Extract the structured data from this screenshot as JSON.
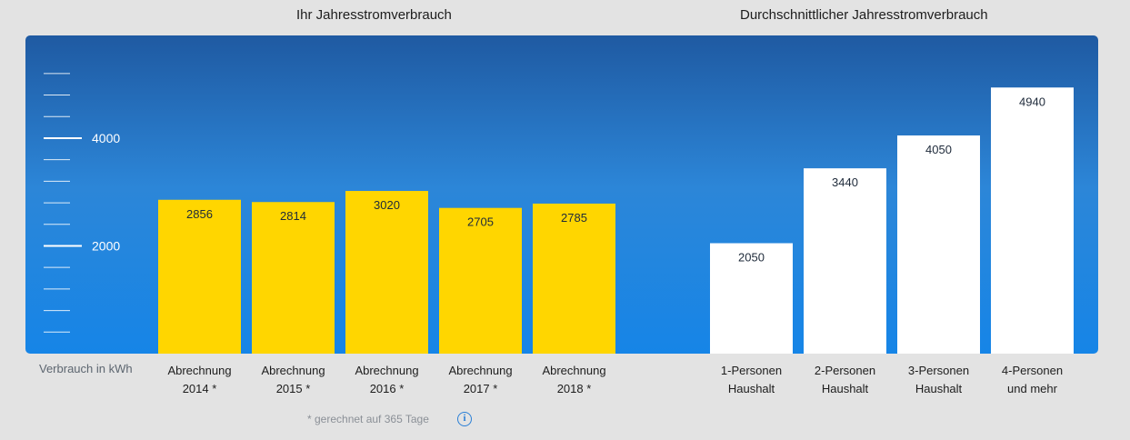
{
  "titles": {
    "own": "Ihr Jahresstromverbrauch",
    "average": "Durchschnittlicher Jahresstromverbrauch"
  },
  "y_axis_label": "Verbrauch in kWh",
  "footnote": "* gerechnet auf 365 Tage",
  "info_icon": "info-icon",
  "colors": {
    "own_bars": "#ffd600",
    "average_bars": "#ffffff",
    "panel_top": "#1f5aa2",
    "panel_bottom": "#1685e7"
  },
  "chart_data": [
    {
      "type": "bar",
      "title": "Ihr Jahresstromverbrauch",
      "ylabel": "Verbrauch in kWh",
      "categories": [
        "Abrechnung 2014 *",
        "Abrechnung 2015 *",
        "Abrechnung 2016 *",
        "Abrechnung 2017 *",
        "Abrechnung 2018 *"
      ],
      "category_lines": [
        [
          "Abrechnung",
          "2014 *"
        ],
        [
          "Abrechnung",
          "2015 *"
        ],
        [
          "Abrechnung",
          "2016 *"
        ],
        [
          "Abrechnung",
          "2017 *"
        ],
        [
          "Abrechnung",
          "2018 *"
        ]
      ],
      "values": [
        2856,
        2814,
        3020,
        2705,
        2785
      ],
      "ylim": [
        0,
        5400
      ],
      "yticks_labeled": [
        "2000",
        "4000"
      ],
      "ytick_values": [
        2000,
        4000
      ],
      "minor_tick_step": 400,
      "grid": false
    },
    {
      "type": "bar",
      "title": "Durchschnittlicher Jahresstromverbrauch",
      "categories": [
        "1-Personen Haushalt",
        "2-Personen Haushalt",
        "3-Personen Haushalt",
        "4-Personen und mehr"
      ],
      "category_lines": [
        [
          "1-Personen",
          "Haushalt"
        ],
        [
          "2-Personen",
          "Haushalt"
        ],
        [
          "3-Personen",
          "Haushalt"
        ],
        [
          "4-Personen",
          "und mehr"
        ]
      ],
      "values": [
        2050,
        3440,
        4050,
        4940
      ],
      "ylim": [
        0,
        5400
      ],
      "grid": false
    }
  ]
}
